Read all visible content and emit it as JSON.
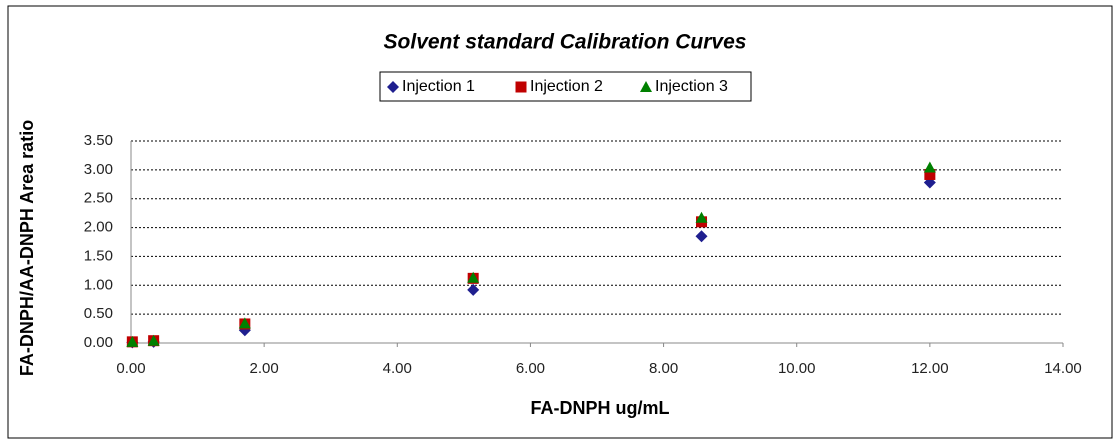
{
  "chart_data": {
    "type": "scatter",
    "title": "Solvent standard  Calibration Curves",
    "x_label": "FA-DNPH ug/mL",
    "y_label": "FA-DNPH/AA-DNPH Area ratio",
    "x": [
      0.02,
      0.34,
      1.71,
      5.14,
      8.57,
      12.0
    ],
    "series": [
      {
        "name": "Injection 1",
        "color": "#1f1f8f",
        "marker": "diamond",
        "values": [
          0.01,
          0.02,
          0.22,
          0.92,
          1.85,
          2.78
        ]
      },
      {
        "name": "Injection 2",
        "color": "#c00000",
        "marker": "square",
        "values": [
          0.02,
          0.04,
          0.33,
          1.12,
          2.1,
          2.92
        ]
      },
      {
        "name": "Injection 3",
        "color": "#008000",
        "marker": "triangle",
        "values": [
          0.02,
          0.04,
          0.34,
          1.13,
          2.17,
          3.04
        ]
      }
    ],
    "xlim": [
      0,
      14
    ],
    "xticks": [
      {
        "value": 0,
        "label": "0.00"
      },
      {
        "value": 2,
        "label": "2.00"
      },
      {
        "value": 4,
        "label": "4.00"
      },
      {
        "value": 6,
        "label": "6.00"
      },
      {
        "value": 8,
        "label": "8.00"
      },
      {
        "value": 10,
        "label": "10.00"
      },
      {
        "value": 12,
        "label": "12.00"
      },
      {
        "value": 14,
        "label": "14.00"
      }
    ],
    "ylim": [
      0,
      3.5
    ],
    "yticks": [
      {
        "value": 0,
        "label": "0.00"
      },
      {
        "value": 0.5,
        "label": "0.50"
      },
      {
        "value": 1,
        "label": "1.00"
      },
      {
        "value": 1.5,
        "label": "1.50"
      },
      {
        "value": 2,
        "label": "2.00"
      },
      {
        "value": 2.5,
        "label": "2.50"
      },
      {
        "value": 3,
        "label": "3.00"
      },
      {
        "value": 3.5,
        "label": "3.50"
      }
    ],
    "grid": true,
    "legend": "top"
  }
}
